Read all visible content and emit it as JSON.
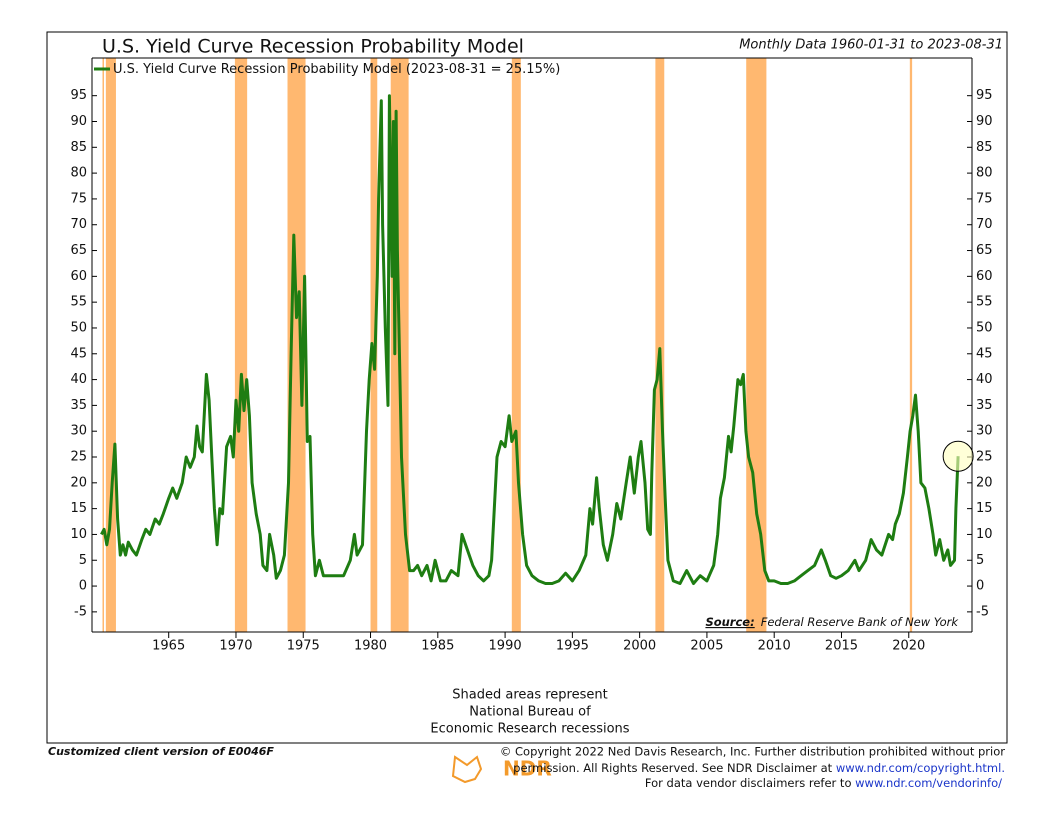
{
  "chart_data": {
    "type": "line",
    "title": "U.S. Yield Curve Recession Probability Model",
    "subtitle": "Monthly Data 1960-01-31 to 2023-08-31",
    "legend_note": "(2023-08-31 = 25.15%)",
    "source_label": "Source:",
    "source": "Federal Reserve Bank of New York",
    "note": [
      "Shaded areas represent",
      "National Bureau of",
      "Economic Research recessions"
    ],
    "xlim": [
      1959.3,
      2024.7
    ],
    "xticks": [
      1965,
      1970,
      1975,
      1980,
      1985,
      1990,
      1995,
      2000,
      2005,
      2010,
      2015,
      2020
    ],
    "ylim": [
      -8.9,
      102.3
    ],
    "yticks": [
      -5,
      0,
      5,
      10,
      15,
      20,
      25,
      30,
      35,
      40,
      45,
      50,
      55,
      60,
      65,
      70,
      75,
      80,
      85,
      90,
      95
    ],
    "recession_color": "#ffb870",
    "recessions": [
      [
        1960.08,
        1960.12
      ],
      [
        1960.33,
        1961.08
      ],
      [
        1969.92,
        1970.83
      ],
      [
        1973.83,
        1975.17
      ],
      [
        1980.0,
        1980.5
      ],
      [
        1981.5,
        1982.83
      ],
      [
        1990.5,
        1991.17
      ],
      [
        2001.17,
        2001.83
      ],
      [
        2007.92,
        2009.42
      ],
      [
        2020.08,
        2020.25
      ]
    ],
    "x": [
      1960.0,
      1960.2,
      1960.4,
      1960.6,
      1960.8,
      1961.0,
      1961.2,
      1961.4,
      1961.6,
      1961.8,
      1962.0,
      1962.3,
      1962.6,
      1963.0,
      1963.3,
      1963.6,
      1964.0,
      1964.3,
      1964.6,
      1965.0,
      1965.3,
      1965.6,
      1966.0,
      1966.3,
      1966.6,
      1966.9,
      1967.1,
      1967.3,
      1967.5,
      1967.8,
      1968.0,
      1968.2,
      1968.4,
      1968.6,
      1968.8,
      1969.0,
      1969.3,
      1969.6,
      1969.8,
      1970.0,
      1970.2,
      1970.4,
      1970.6,
      1970.8,
      1971.0,
      1971.2,
      1971.5,
      1971.8,
      1972.0,
      1972.3,
      1972.5,
      1972.8,
      1973.0,
      1973.3,
      1973.6,
      1973.9,
      1974.1,
      1974.3,
      1974.5,
      1974.7,
      1974.9,
      1975.1,
      1975.3,
      1975.5,
      1975.7,
      1975.9,
      1976.2,
      1976.5,
      1977.0,
      1977.5,
      1978.0,
      1978.5,
      1978.8,
      1979.0,
      1979.4,
      1979.7,
      1979.9,
      1980.1,
      1980.3,
      1980.5,
      1980.6,
      1980.8,
      1980.9,
      1981.1,
      1981.3,
      1981.4,
      1981.6,
      1981.7,
      1981.8,
      1981.9,
      1982.0,
      1982.3,
      1982.6,
      1982.9,
      1983.2,
      1983.5,
      1983.8,
      1984.2,
      1984.5,
      1984.8,
      1985.2,
      1985.6,
      1986.0,
      1986.5,
      1986.8,
      1987.2,
      1987.6,
      1988.0,
      1988.4,
      1988.8,
      1989.0,
      1989.4,
      1989.7,
      1990.0,
      1990.3,
      1990.5,
      1990.8,
      1991.0,
      1991.3,
      1991.6,
      1992.0,
      1992.5,
      1993.0,
      1993.5,
      1994.0,
      1994.5,
      1995.0,
      1995.5,
      1996.0,
      1996.3,
      1996.5,
      1996.8,
      1997.0,
      1997.3,
      1997.6,
      1998.0,
      1998.3,
      1998.6,
      1999.0,
      1999.3,
      1999.6,
      1999.9,
      2000.1,
      2000.4,
      2000.6,
      2000.8,
      2000.9,
      2001.1,
      2001.3,
      2001.5,
      2001.7,
      2001.9,
      2002.1,
      2002.5,
      2003.0,
      2003.5,
      2004.0,
      2004.5,
      2005.0,
      2005.5,
      2005.8,
      2006.0,
      2006.3,
      2006.6,
      2006.8,
      2007.0,
      2007.3,
      2007.5,
      2007.7,
      2007.9,
      2008.1,
      2008.4,
      2008.7,
      2009.0,
      2009.3,
      2009.6,
      2010.0,
      2010.5,
      2011.0,
      2011.5,
      2012.0,
      2012.5,
      2013.0,
      2013.5,
      2013.8,
      2014.2,
      2014.6,
      2015.0,
      2015.5,
      2016.0,
      2016.3,
      2016.8,
      2017.2,
      2017.6,
      2018.0,
      2018.5,
      2018.8,
      2019.0,
      2019.3,
      2019.6,
      2019.9,
      2020.1,
      2020.3,
      2020.5,
      2020.7,
      2020.9,
      2021.2,
      2021.5,
      2021.8,
      2022.0,
      2022.3,
      2022.6,
      2022.9,
      2023.1,
      2023.4,
      2023.5,
      2023.67
    ],
    "series": [
      {
        "name": "U.S. Yield Curve Recession Probability Model",
        "color": "#1e7d12",
        "values": [
          10,
          11,
          8,
          11,
          20,
          27.5,
          13,
          6,
          8,
          6,
          8.5,
          7,
          6,
          9,
          11,
          10,
          13,
          12,
          14,
          17,
          19,
          17,
          20,
          25,
          23,
          25,
          31,
          27,
          26,
          41,
          36,
          25,
          15,
          8,
          15,
          14,
          27,
          29,
          25,
          36,
          30,
          41,
          34,
          40,
          33,
          20,
          14,
          10,
          4,
          3,
          10,
          6,
          1.5,
          3,
          6,
          20,
          45,
          68,
          52,
          57,
          35,
          60,
          28,
          29,
          10,
          2,
          5,
          2,
          2,
          2,
          2,
          5,
          10,
          6,
          8,
          30,
          40,
          47,
          42,
          60,
          75,
          94,
          70,
          50,
          35,
          95,
          60,
          90,
          45,
          92,
          65,
          25,
          10,
          3,
          3,
          4,
          2,
          4,
          1,
          5,
          1,
          1,
          3,
          2,
          10,
          7,
          4,
          2,
          1,
          2,
          5,
          25,
          28,
          27,
          33,
          28,
          30,
          20,
          10,
          4,
          2,
          1,
          0.5,
          0.5,
          1,
          2.5,
          1,
          3,
          6,
          15,
          12,
          21,
          15,
          8,
          5,
          10,
          16,
          13,
          20,
          25,
          18,
          25,
          28,
          20,
          11,
          10,
          22,
          38,
          40,
          46,
          30,
          17,
          5,
          1,
          0.5,
          3,
          0.5,
          2,
          1,
          4,
          10,
          17,
          21,
          29,
          26,
          31,
          40,
          39,
          41,
          30,
          25,
          22,
          14,
          10,
          3,
          1,
          1,
          0.5,
          0.5,
          1,
          2,
          3,
          4,
          7,
          5,
          2,
          1.5,
          2,
          3,
          5,
          3,
          5,
          9,
          7,
          6,
          10,
          9,
          12,
          14,
          18,
          25,
          30,
          33,
          37,
          30,
          20,
          19,
          15,
          10,
          6,
          9,
          5,
          7,
          4,
          5,
          15,
          25.15
        ]
      }
    ]
  },
  "footer": {
    "client": "Customized client version of E0046F",
    "logo": "NDR",
    "copyright": "© Copyright 2022 Ned Davis Research, Inc. Further distribution prohibited without prior",
    "permission": "permission. All Rights Reserved. See NDR Disclaimer at",
    "permission_link": "www.ndr.com/copyright.html.",
    "vendor": "For data vendor disclaimers refer to",
    "vendor_link": "www.ndr.com/vendorinfo/"
  }
}
